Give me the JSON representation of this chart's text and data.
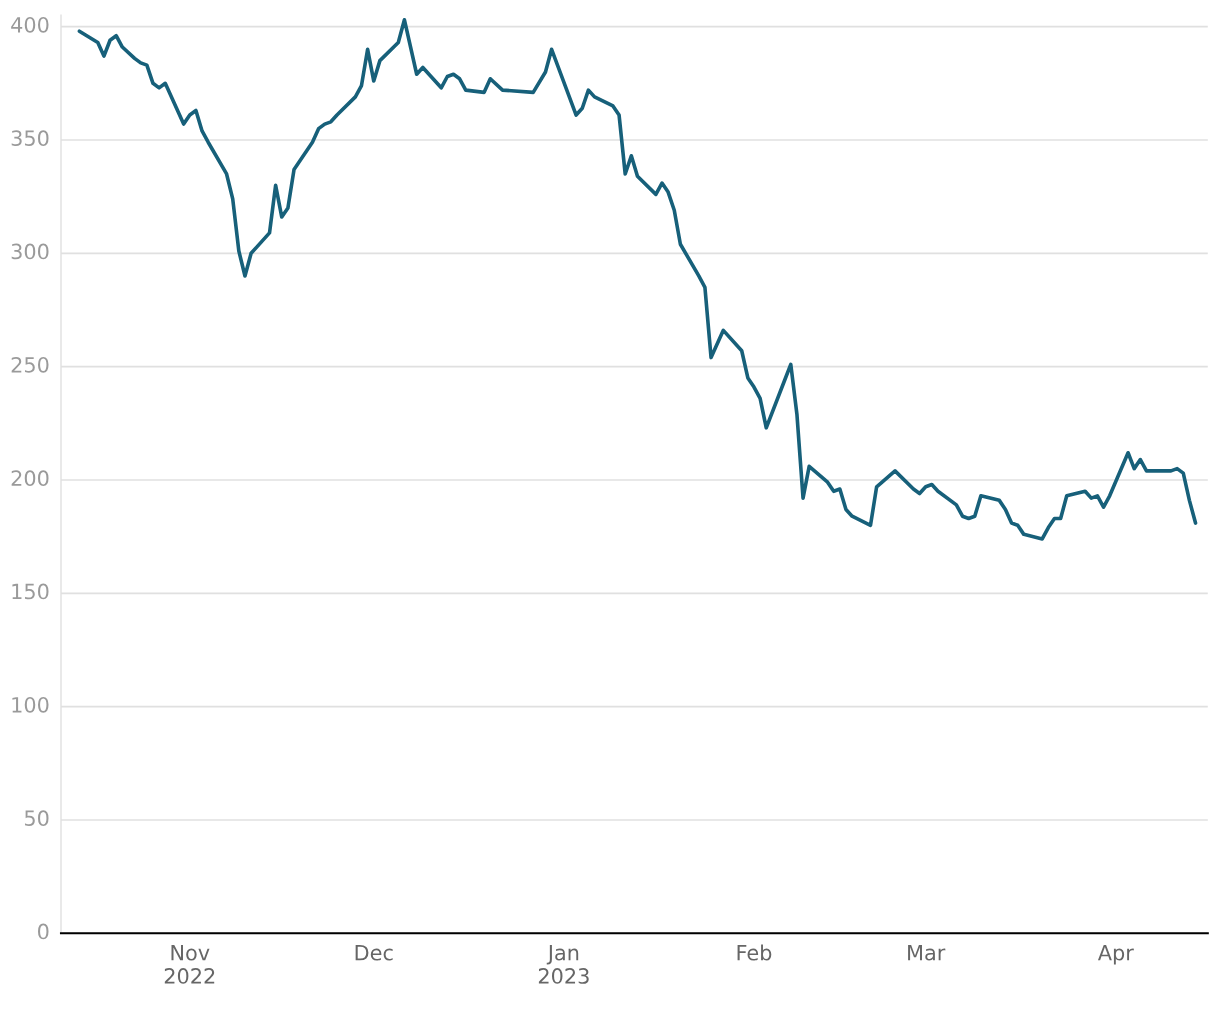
{
  "chart_data": {
    "type": "line",
    "x": [
      "2022-10-14",
      "2022-10-17",
      "2022-10-18",
      "2022-10-19",
      "2022-10-20",
      "2022-10-21",
      "2022-10-23",
      "2022-10-24",
      "2022-10-25",
      "2022-10-26",
      "2022-10-27",
      "2022-10-28",
      "2022-10-31",
      "2022-11-01",
      "2022-11-02",
      "2022-11-03",
      "2022-11-04",
      "2022-11-07",
      "2022-11-08",
      "2022-11-09",
      "2022-11-10",
      "2022-11-11",
      "2022-11-14",
      "2022-11-15",
      "2022-11-16",
      "2022-11-17",
      "2022-11-18",
      "2022-11-21",
      "2022-11-22",
      "2022-11-23",
      "2022-11-24",
      "2022-11-25",
      "2022-11-28",
      "2022-11-29",
      "2022-11-30",
      "2022-12-01",
      "2022-12-02",
      "2022-12-05",
      "2022-12-06",
      "2022-12-08",
      "2022-12-09",
      "2022-12-12",
      "2022-12-13",
      "2022-12-14",
      "2022-12-15",
      "2022-12-16",
      "2022-12-19",
      "2022-12-20",
      "2022-12-22",
      "2022-12-27",
      "2022-12-29",
      "2022-12-30",
      "2023-01-03",
      "2023-01-04",
      "2023-01-05",
      "2023-01-06",
      "2023-01-09",
      "2023-01-10",
      "2023-01-11",
      "2023-01-12",
      "2023-01-13",
      "2023-01-16",
      "2023-01-17",
      "2023-01-18",
      "2023-01-19",
      "2023-01-20",
      "2023-01-23",
      "2023-01-24",
      "2023-01-25",
      "2023-01-27",
      "2023-01-30",
      "2023-01-31",
      "2023-02-01",
      "2023-02-02",
      "2023-02-03",
      "2023-02-06",
      "2023-02-07",
      "2023-02-08",
      "2023-02-09",
      "2023-02-10",
      "2023-02-13",
      "2023-02-14",
      "2023-02-15",
      "2023-02-16",
      "2023-02-17",
      "2023-02-20",
      "2023-02-21",
      "2023-02-24",
      "2023-02-27",
      "2023-02-28",
      "2023-03-01",
      "2023-03-02",
      "2023-03-03",
      "2023-03-06",
      "2023-03-07",
      "2023-03-08",
      "2023-03-09",
      "2023-03-10",
      "2023-03-13",
      "2023-03-14",
      "2023-03-15",
      "2023-03-16",
      "2023-03-17",
      "2023-03-20",
      "2023-03-21",
      "2023-03-22",
      "2023-03-23",
      "2023-03-24",
      "2023-03-27",
      "2023-03-28",
      "2023-03-29",
      "2023-03-30",
      "2023-03-31",
      "2023-04-03",
      "2023-04-04",
      "2023-04-05",
      "2023-04-06",
      "2023-04-10",
      "2023-04-11",
      "2023-04-12",
      "2023-04-13",
      "2023-04-14"
    ],
    "series": [
      {
        "color": "#17607a",
        "values": [
          398,
          393,
          387,
          394,
          396,
          391,
          386,
          384,
          383,
          375,
          373,
          375,
          357,
          361,
          363,
          354,
          349,
          335,
          324,
          301,
          290,
          300,
          309,
          330,
          316,
          320,
          337,
          349,
          355,
          357,
          358,
          361,
          369,
          374,
          390,
          376,
          385,
          393,
          403,
          379,
          382,
          373,
          378,
          379,
          377,
          372,
          371,
          377,
          372,
          371,
          380,
          390,
          361,
          364,
          372,
          369,
          365,
          361,
          335,
          343,
          334,
          326,
          331,
          327,
          319,
          304,
          290,
          285,
          254,
          266,
          257,
          245,
          241,
          236,
          223,
          244,
          251,
          229,
          192,
          206,
          199,
          195,
          196,
          187,
          184,
          180,
          197,
          204,
          196,
          194,
          197,
          198,
          195,
          189,
          184,
          183,
          184,
          193,
          191,
          187,
          181,
          180,
          176,
          174,
          179,
          183,
          183,
          193,
          195,
          192,
          193,
          188,
          193,
          212,
          205,
          209,
          204,
          204,
          205,
          203,
          191,
          181
        ]
      }
    ],
    "xlim": [
      "2022-10-11",
      "2023-04-16"
    ],
    "xticks": [
      {
        "value": "2022-11-01",
        "label": "Nov\n2022"
      },
      {
        "value": "2022-12-01",
        "label": "Dec"
      },
      {
        "value": "2023-01-01",
        "label": "Jan\n2023"
      },
      {
        "value": "2023-02-01",
        "label": "Feb"
      },
      {
        "value": "2023-03-01",
        "label": "Mar"
      },
      {
        "value": "2023-04-01",
        "label": "Apr"
      }
    ],
    "ylim": [
      0,
      405
    ],
    "yticks": [
      0,
      50,
      100,
      150,
      200,
      250,
      300,
      350,
      400
    ],
    "grid": "y"
  }
}
